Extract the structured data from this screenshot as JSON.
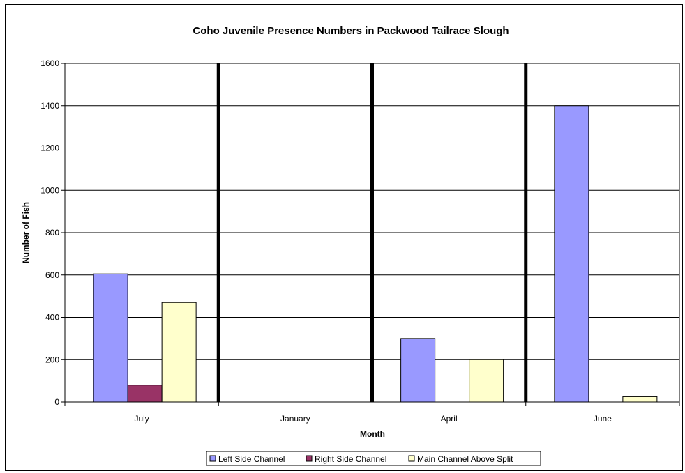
{
  "chart_data": {
    "type": "bar",
    "title": "Coho Juvenile Presence Numbers in Packwood Tailrace Slough",
    "xlabel": "Month",
    "ylabel": "Number of Fish",
    "categories": [
      "July",
      "January",
      "April",
      "June"
    ],
    "ylim": [
      0,
      1600
    ],
    "yticks": [
      0,
      200,
      400,
      600,
      800,
      1000,
      1200,
      1400,
      1600
    ],
    "grid": true,
    "legend_position": "bottom",
    "category_separators": true,
    "series": [
      {
        "name": "Left Side Channel",
        "color": "#9999ff",
        "values": [
          605,
          0,
          300,
          1400
        ]
      },
      {
        "name": "Right Side Channel",
        "color": "#993366",
        "values": [
          80,
          0,
          0,
          0
        ]
      },
      {
        "name": "Main Channel Above Split",
        "color": "#ffffcc",
        "values": [
          470,
          0,
          200,
          25
        ]
      }
    ]
  }
}
